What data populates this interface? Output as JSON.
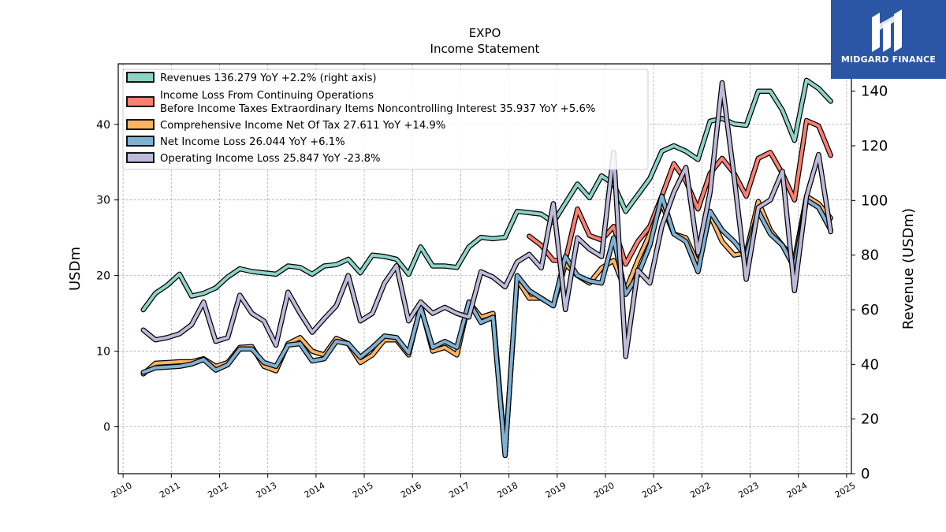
{
  "title": "EXPO",
  "subtitle": "Income Statement",
  "brand": {
    "name": "MIDGARD FINANCE",
    "color": "#2b56a6"
  },
  "chart_data": {
    "type": "line",
    "ylabel": "USDm",
    "y2label": "Revenue (USDm)",
    "ylim": [
      -6.2,
      48
    ],
    "y2lim": [
      0,
      150
    ],
    "xlim": [
      2009.9,
      2025.1
    ],
    "x_ticks": [
      "2010",
      "2011",
      "2012",
      "2013",
      "2014",
      "2015",
      "2016",
      "2017",
      "2018",
      "2019",
      "2020",
      "2021",
      "2022",
      "2023",
      "2024",
      "2025"
    ],
    "y_ticks": [
      0,
      10,
      20,
      30,
      40
    ],
    "y2_ticks": [
      0,
      20,
      40,
      60,
      80,
      100,
      120,
      140
    ],
    "grid": true,
    "legend_position": "top-left",
    "series": [
      {
        "name": "Revenues",
        "legend": "Revenues  136.279 YoY +2.2% (right axis)",
        "axis": "right",
        "color": "#8dd3c7",
        "x": [
          2010.42,
          2010.67,
          2010.92,
          2011.17,
          2011.42,
          2011.67,
          2011.92,
          2012.17,
          2012.42,
          2012.67,
          2012.92,
          2013.17,
          2013.42,
          2013.67,
          2013.92,
          2014.17,
          2014.42,
          2014.67,
          2014.92,
          2015.17,
          2015.42,
          2015.67,
          2015.92,
          2016.17,
          2016.42,
          2016.67,
          2016.92,
          2017.17,
          2017.42,
          2017.67,
          2017.92,
          2018.17,
          2018.42,
          2018.67,
          2018.92,
          2019.17,
          2019.42,
          2019.67,
          2019.92,
          2020.17,
          2020.42,
          2020.67,
          2020.92,
          2021.17,
          2021.42,
          2021.67,
          2021.92,
          2022.17,
          2022.42,
          2022.67,
          2022.92,
          2023.17,
          2023.42,
          2023.67,
          2023.92,
          2024.17,
          2024.42,
          2024.67
        ],
        "values": [
          60,
          66,
          69,
          73,
          65,
          66,
          68,
          72,
          75,
          74,
          73.5,
          73,
          76,
          75.5,
          73,
          76,
          76.5,
          78.5,
          73.5,
          80,
          79.5,
          78.5,
          73,
          83,
          76,
          76,
          75.5,
          83,
          86.5,
          86,
          86.5,
          96,
          95.5,
          95,
          92,
          99,
          106,
          101,
          109,
          106,
          96,
          102,
          108,
          118,
          120,
          118,
          115,
          129,
          130,
          128,
          127.5,
          140,
          140,
          133,
          122,
          144,
          141,
          136.3
        ]
      },
      {
        "name": "Income Loss From Continuing Operations Before Income Taxes Extraordinary Items Noncontrolling Interest",
        "legend_lines": [
          "Income Loss From Continuing Operations",
          "Before Income Taxes Extraordinary Items Noncontrolling Interest  35.937 YoY +5.6%"
        ],
        "axis": "left",
        "color": "#fb8072",
        "x": [
          2018.42,
          2018.67,
          2018.92,
          2019.17,
          2019.42,
          2019.67,
          2019.92,
          2020.17,
          2020.42,
          2020.67,
          2020.92,
          2021.17,
          2021.42,
          2021.67,
          2021.92,
          2022.17,
          2022.42,
          2022.67,
          2022.92,
          2023.17,
          2023.42,
          2023.67,
          2023.92,
          2024.17,
          2024.42,
          2024.67
        ],
        "values": [
          25.2,
          24,
          22,
          22,
          28.8,
          25.3,
          24.7,
          26.5,
          21.5,
          24.5,
          26.5,
          30.5,
          34.8,
          32.5,
          28.8,
          33.5,
          35.5,
          33.5,
          30.5,
          35.5,
          36.3,
          33.5,
          30,
          40.5,
          39.8,
          35.9
        ]
      },
      {
        "name": "Comprehensive Income Net Of Tax",
        "legend": "Comprehensive Income Net Of Tax  27.611 YoY +14.9%",
        "axis": "left",
        "color": "#fdb462",
        "x": [
          2010.42,
          2010.67,
          2010.92,
          2011.17,
          2011.42,
          2011.67,
          2011.92,
          2012.17,
          2012.42,
          2012.67,
          2012.92,
          2013.17,
          2013.42,
          2013.67,
          2013.92,
          2014.17,
          2014.42,
          2014.67,
          2014.92,
          2015.17,
          2015.42,
          2015.67,
          2015.92,
          2016.17,
          2016.42,
          2016.67,
          2016.92,
          2017.17,
          2017.42,
          2017.67,
          2017.92,
          2018.17,
          2018.42,
          2018.67,
          2018.92,
          2019.17,
          2019.42,
          2019.67,
          2019.92,
          2020.17,
          2020.42,
          2020.67,
          2020.92,
          2021.17,
          2021.42,
          2021.67,
          2021.92,
          2022.17,
          2022.42,
          2022.67,
          2022.92,
          2023.17,
          2023.42,
          2023.67,
          2023.92,
          2024.17,
          2024.42,
          2024.67
        ],
        "values": [
          7,
          8.4,
          8.5,
          8.6,
          8.6,
          9,
          8,
          8.5,
          10.5,
          10.6,
          8,
          7.4,
          11,
          11.8,
          10,
          9.5,
          11.7,
          11,
          8.5,
          9.5,
          11.5,
          11.5,
          9.5,
          16,
          10,
          10.5,
          9.5,
          16.5,
          14.5,
          15,
          -3.5,
          19.5,
          17,
          17,
          16,
          21.5,
          20,
          19,
          21,
          22,
          18,
          22,
          25.5,
          29.5,
          25.5,
          25,
          21.5,
          28,
          24.5,
          22.7,
          23,
          29.8,
          26,
          24,
          22,
          30.5,
          29.5,
          27.6
        ]
      },
      {
        "name": "Net Income Loss",
        "legend": "Net Income Loss  26.044 YoY +6.1%",
        "axis": "left",
        "color": "#80b1d3",
        "x": [
          2010.42,
          2010.67,
          2010.92,
          2011.17,
          2011.42,
          2011.67,
          2011.92,
          2012.17,
          2012.42,
          2012.67,
          2012.92,
          2013.17,
          2013.42,
          2013.67,
          2013.92,
          2014.17,
          2014.42,
          2014.67,
          2014.92,
          2015.17,
          2015.42,
          2015.67,
          2015.92,
          2016.17,
          2016.42,
          2016.67,
          2016.92,
          2017.17,
          2017.42,
          2017.67,
          2017.92,
          2018.17,
          2018.42,
          2018.67,
          2018.92,
          2019.17,
          2019.42,
          2019.67,
          2019.92,
          2020.17,
          2020.42,
          2020.67,
          2020.92,
          2021.17,
          2021.42,
          2021.67,
          2021.92,
          2022.17,
          2022.42,
          2022.67,
          2022.92,
          2023.17,
          2023.42,
          2023.67,
          2023.92,
          2024.17,
          2024.42,
          2024.67
        ],
        "values": [
          7.2,
          7.8,
          7.9,
          8,
          8.3,
          8.9,
          7.5,
          8.2,
          10.3,
          10.3,
          8.5,
          8,
          10.8,
          11,
          8.7,
          9,
          11.3,
          11,
          9.2,
          10.5,
          12,
          11.8,
          9.8,
          15.8,
          10.5,
          11.3,
          10.5,
          16.5,
          13.8,
          14.5,
          -3.8,
          20,
          18,
          17,
          16,
          22.5,
          20,
          19.3,
          19,
          25,
          17.5,
          20,
          24,
          30.5,
          25.5,
          24.5,
          20.5,
          28.5,
          26,
          24.5,
          22.5,
          28.5,
          25.5,
          24,
          21,
          30,
          29,
          26.04
        ]
      },
      {
        "name": "Operating Income Loss",
        "legend": "Operating Income Loss  25.847 YoY -23.8%",
        "axis": "left",
        "color": "#bebada",
        "x": [
          2010.42,
          2010.67,
          2010.92,
          2011.17,
          2011.42,
          2011.67,
          2011.92,
          2012.17,
          2012.42,
          2012.67,
          2012.92,
          2013.17,
          2013.42,
          2013.67,
          2013.92,
          2014.17,
          2014.42,
          2014.67,
          2014.92,
          2015.17,
          2015.42,
          2015.67,
          2015.92,
          2016.17,
          2016.42,
          2016.67,
          2016.92,
          2017.17,
          2017.42,
          2017.67,
          2017.92,
          2018.17,
          2018.42,
          2018.67,
          2018.92,
          2019.17,
          2019.42,
          2019.67,
          2019.92,
          2020.17,
          2020.42,
          2020.67,
          2020.92,
          2021.17,
          2021.42,
          2021.67,
          2021.92,
          2022.17,
          2022.42,
          2022.67,
          2022.92,
          2023.17,
          2023.42,
          2023.67,
          2023.92,
          2024.17,
          2024.42,
          2024.67
        ],
        "values": [
          12.8,
          11.5,
          11.8,
          12.3,
          13.5,
          16.5,
          11.3,
          11.8,
          17.4,
          15,
          14,
          10.8,
          17.8,
          15,
          12.5,
          14.3,
          16,
          20,
          14,
          15,
          19,
          21.3,
          14,
          16.5,
          15,
          15.8,
          15,
          14.5,
          20.5,
          19.8,
          18.5,
          21.8,
          22.8,
          21,
          29.5,
          15.5,
          25,
          23.5,
          22.5,
          36.3,
          9.3,
          20.7,
          19,
          26.5,
          31,
          34.3,
          23,
          31,
          45.5,
          33,
          19.5,
          29,
          30,
          33.8,
          18,
          30.5,
          36,
          25.8
        ]
      }
    ]
  }
}
